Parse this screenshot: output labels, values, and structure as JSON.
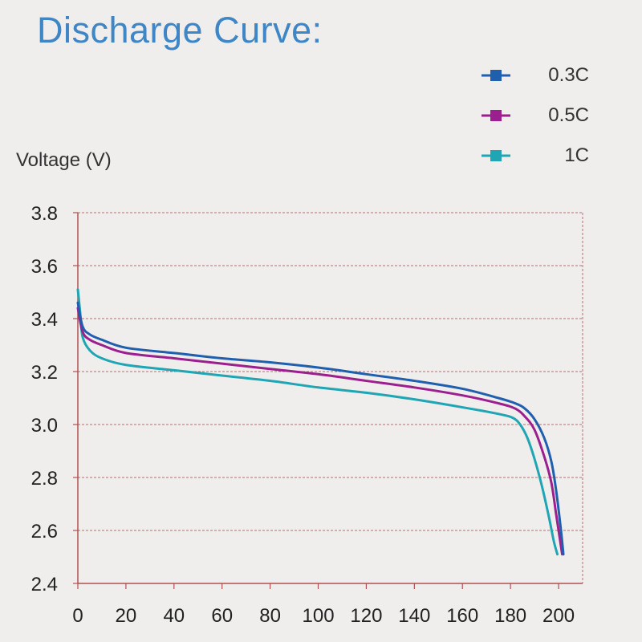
{
  "chart_data": {
    "type": "line",
    "title": "Discharge Curve:",
    "ylabel": "Voltage (V)",
    "xlabel": "",
    "xlim": [
      0,
      210
    ],
    "ylim": [
      2.4,
      3.8
    ],
    "x_ticks": [
      0,
      20,
      40,
      60,
      80,
      100,
      120,
      140,
      160,
      180,
      200
    ],
    "y_ticks": [
      2.4,
      2.6,
      2.8,
      3.0,
      3.2,
      3.4,
      3.6,
      3.8
    ],
    "y_tick_labels": [
      "2.4",
      "2.6",
      "2.8",
      "3.0",
      "3.2",
      "3.4",
      "3.6",
      "3.8"
    ],
    "grid": true,
    "legend_position": "top-right",
    "series": [
      {
        "name": "0.3C",
        "color": "#1f5fae",
        "x": [
          0,
          2,
          5,
          10,
          20,
          40,
          60,
          80,
          100,
          120,
          140,
          160,
          175,
          182,
          186,
          190,
          194,
          197,
          199,
          201,
          202
        ],
        "y": [
          3.46,
          3.37,
          3.34,
          3.32,
          3.29,
          3.27,
          3.25,
          3.235,
          3.215,
          3.19,
          3.165,
          3.135,
          3.1,
          3.08,
          3.06,
          3.02,
          2.95,
          2.86,
          2.75,
          2.6,
          2.51
        ]
      },
      {
        "name": "0.5C",
        "color": "#9b1f8e",
        "x": [
          0,
          2,
          5,
          10,
          20,
          40,
          60,
          80,
          100,
          120,
          140,
          160,
          175,
          182,
          186,
          190,
          194,
          197,
          199,
          200.5,
          201.5
        ],
        "y": [
          3.44,
          3.35,
          3.32,
          3.3,
          3.27,
          3.25,
          3.23,
          3.21,
          3.19,
          3.165,
          3.14,
          3.11,
          3.08,
          3.06,
          3.03,
          2.98,
          2.88,
          2.78,
          2.66,
          2.57,
          2.51
        ]
      },
      {
        "name": "1C",
        "color": "#1fa5b3",
        "x": [
          0,
          1,
          2,
          5,
          10,
          20,
          40,
          60,
          80,
          100,
          120,
          140,
          160,
          175,
          181,
          184,
          187,
          190,
          193,
          196,
          198,
          199.5
        ],
        "y": [
          3.51,
          3.42,
          3.33,
          3.28,
          3.25,
          3.225,
          3.205,
          3.185,
          3.165,
          3.14,
          3.12,
          3.095,
          3.065,
          3.04,
          3.025,
          3.0,
          2.95,
          2.87,
          2.77,
          2.65,
          2.56,
          2.51
        ]
      }
    ]
  }
}
